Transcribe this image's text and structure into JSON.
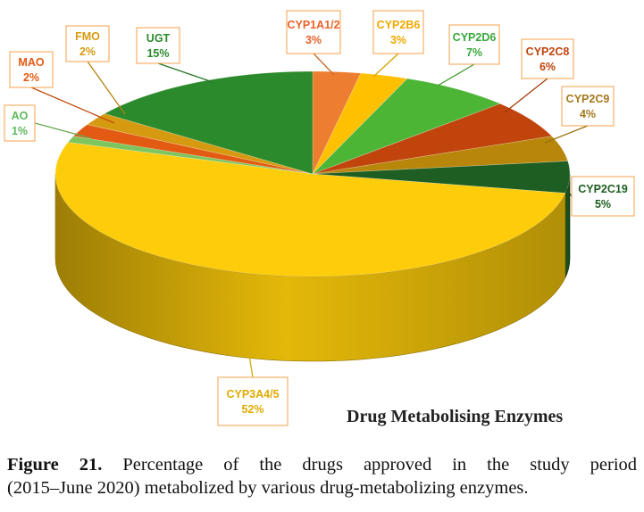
{
  "chart_data": {
    "type": "pie",
    "style": "3d",
    "title": "Drug Metabolising Enzymes",
    "slices": [
      {
        "label": "CYP1A1/2",
        "value": 3,
        "percent_label": "3%",
        "color": "#ed7d31",
        "label_color": "#e8622a"
      },
      {
        "label": "CYP2B6",
        "value": 3,
        "percent_label": "3%",
        "color": "#ffc000",
        "label_color": "#f0a800"
      },
      {
        "label": "CYP2D6",
        "value": 7,
        "percent_label": "7%",
        "color": "#4cb536",
        "label_color": "#3aa63a"
      },
      {
        "label": "CYP2C8",
        "value": 6,
        "percent_label": "6%",
        "color": "#c0440c",
        "label_color": "#c0440c"
      },
      {
        "label": "CYP2C9",
        "value": 4,
        "percent_label": "4%",
        "color": "#b8860b",
        "label_color": "#a6781a"
      },
      {
        "label": "CYP2C19",
        "value": 5,
        "percent_label": "5%",
        "color": "#1e5e22",
        "label_color": "#1e5e22"
      },
      {
        "label": "CYP3A4/5",
        "value": 52,
        "percent_label": "52%",
        "color": "#fdcc0a",
        "label_color": "#e0aa00"
      },
      {
        "label": "AO",
        "value": 1,
        "percent_label": "1%",
        "color": "#7dc55f",
        "label_color": "#5cb85c"
      },
      {
        "label": "MAO",
        "value": 2,
        "percent_label": "2%",
        "color": "#e35a12",
        "label_color": "#e35a12"
      },
      {
        "label": "FMO",
        "value": 2,
        "percent_label": "2%",
        "color": "#d69a10",
        "label_color": "#d69a10"
      },
      {
        "label": "UGT",
        "value": 15,
        "percent_label": "15%",
        "color": "#2b8a2b",
        "label_color": "#2b8a2b"
      }
    ],
    "callout_border_color": "#f5a04a"
  },
  "caption": {
    "figure_label": "Figure 21.",
    "line1": "Percentage of the drugs approved in the study period",
    "line2": "(2015–June 2020) metabolized by various drug-metabolizing enzymes."
  }
}
